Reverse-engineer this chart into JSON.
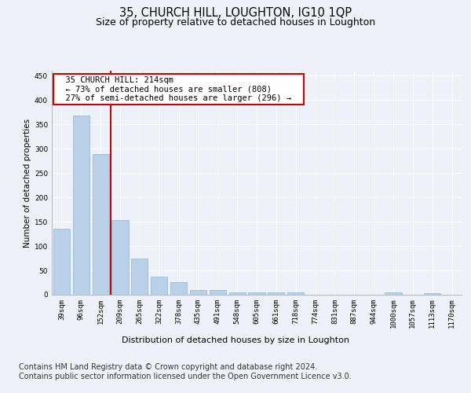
{
  "title": "35, CHURCH HILL, LOUGHTON, IG10 1QP",
  "subtitle": "Size of property relative to detached houses in Loughton",
  "xlabel": "Distribution of detached houses by size in Loughton",
  "ylabel": "Number of detached properties",
  "categories": [
    "39sqm",
    "96sqm",
    "152sqm",
    "209sqm",
    "265sqm",
    "322sqm",
    "378sqm",
    "435sqm",
    "491sqm",
    "548sqm",
    "605sqm",
    "661sqm",
    "718sqm",
    "774sqm",
    "831sqm",
    "887sqm",
    "944sqm",
    "1000sqm",
    "1057sqm",
    "1113sqm",
    "1170sqm"
  ],
  "values": [
    135,
    368,
    289,
    153,
    74,
    37,
    26,
    10,
    9,
    5,
    5,
    5,
    5,
    0,
    0,
    0,
    0,
    5,
    0,
    4,
    0
  ],
  "bar_color": "#b8d0e8",
  "bar_edge_color": "#8ab4d4",
  "marker_line_index": 3,
  "marker_color": "#cc0000",
  "annotation_text": "  35 CHURCH HILL: 214sqm  \n  ← 73% of detached houses are smaller (808)  \n  27% of semi-detached houses are larger (296) →  ",
  "annotation_box_color": "#ffffff",
  "annotation_box_edge": "#cc0000",
  "background_color": "#eef2f8",
  "plot_bg_color": "#eef2f8",
  "ylim": [
    0,
    460
  ],
  "yticks": [
    0,
    50,
    100,
    150,
    200,
    250,
    300,
    350,
    400,
    450
  ],
  "footer": "Contains HM Land Registry data © Crown copyright and database right 2024.\nContains public sector information licensed under the Open Government Licence v3.0.",
  "title_fontsize": 10.5,
  "subtitle_fontsize": 9,
  "footer_fontsize": 7,
  "ylabel_fontsize": 7.5,
  "xlabel_fontsize": 8,
  "tick_fontsize": 6.5,
  "annot_fontsize": 7.5
}
